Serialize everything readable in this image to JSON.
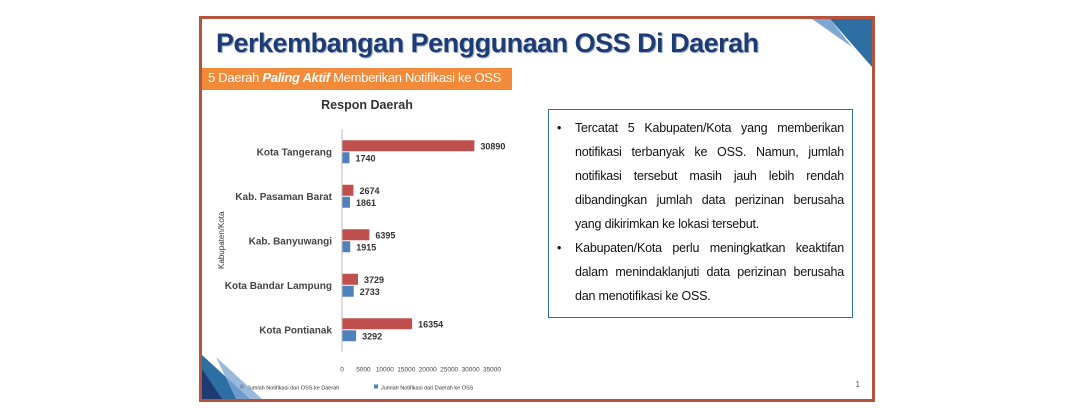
{
  "slide": {
    "title": "Perkembangan Penggunaan OSS Di Daerah",
    "subtitle_prefix": "5 Daerah ",
    "subtitle_bold": "Paling Aktif",
    "subtitle_suffix": " Memberikan Notifikasi ke OSS",
    "page_number": "1",
    "colors": {
      "title": "#1f3b73",
      "subtitle_bg": "#f28a3a",
      "frame": "#b5533c",
      "box_border": "#2d6fa3"
    }
  },
  "bullets": [
    "Tercatat 5 Kabupaten/Kota yang memberikan notifikasi terbanyak ke OSS. Namun, jumlah notifikasi tersebut masih jauh lebih rendah dibandingkan jumlah data perizinan berusaha yang dikirimkan ke lokasi tersebut.",
    "Kabupaten/Kota perlu meningkatkan keaktifan dalam menindaklanjuti data perizinan berusaha dan menotifikasi ke OSS."
  ],
  "chart_data": {
    "type": "bar",
    "orientation": "horizontal",
    "title": "Respon Daerah",
    "ylabel": "Kabupaten/Kota",
    "xlabel": "",
    "categories": [
      "Kota Tangerang",
      "Kab. Pasaman Barat",
      "Kab. Banyuwangi",
      "Kota Bandar Lampung",
      "Kota Pontianak"
    ],
    "series": [
      {
        "name": "Jumlah Notifikasi dari OSS ke Daerah",
        "color": "#c0504d",
        "values": [
          30890,
          2674,
          6395,
          3729,
          16354
        ]
      },
      {
        "name": "Jumlah Notifikasi dari Daerah ke OSS",
        "color": "#4f81bd",
        "values": [
          1740,
          1861,
          1915,
          2733,
          3292
        ]
      }
    ],
    "xlim": [
      0,
      35000
    ],
    "xticks": [
      "0",
      "5000",
      "10000",
      "15000",
      "20000",
      "25000",
      "30000",
      "35000"
    ],
    "grid": false,
    "legend_position": "bottom"
  }
}
